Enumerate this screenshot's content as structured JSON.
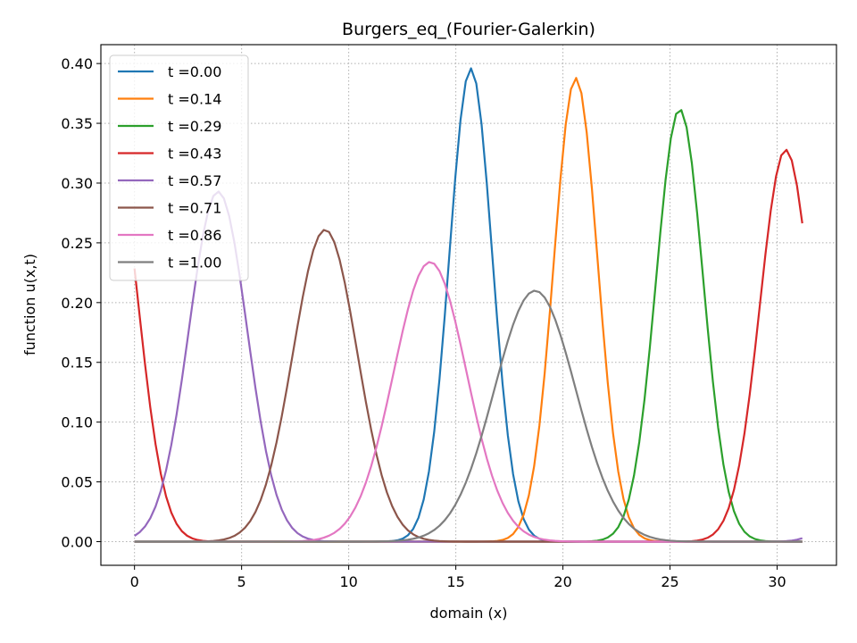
{
  "chart_data": {
    "type": "line",
    "title": "Burgers_eq_(Fourier-Galerkin)",
    "xlabel": "domain (x)",
    "ylabel": "function u(x,t)",
    "xlim": [
      -1.57,
      32.77
    ],
    "ylim": [
      -0.0198,
      0.4158
    ],
    "xticks": [
      0,
      5,
      10,
      15,
      20,
      25,
      30
    ],
    "yticks": [
      0.0,
      0.05,
      0.1,
      0.15,
      0.2,
      0.25,
      0.3,
      0.35,
      0.4
    ],
    "xtick_labels": [
      "0",
      "5",
      "10",
      "15",
      "20",
      "25",
      "30"
    ],
    "ytick_labels": [
      "0.00",
      "0.05",
      "0.10",
      "0.15",
      "0.20",
      "0.25",
      "0.30",
      "0.35",
      "0.40"
    ],
    "grid": true,
    "legend_position": "top-left",
    "domain_length": 31.42,
    "n_points": 128,
    "series": [
      {
        "name": "t =0.00",
        "color": "#1f77b4",
        "peak_x": 15.7,
        "peak_y": 0.396,
        "width": 1.0
      },
      {
        "name": "t =0.14",
        "color": "#ff7f0e",
        "peak_x": 20.6,
        "peak_y": 0.388,
        "width": 1.02
      },
      {
        "name": "t =0.29",
        "color": "#2ca02c",
        "peak_x": 25.45,
        "peak_y": 0.362,
        "width": 1.1
      },
      {
        "name": "t =0.43",
        "color": "#d62728",
        "peak_x": 30.4,
        "peak_y": 0.328,
        "width": 1.2
      },
      {
        "name": "t =0.57",
        "color": "#9467bd",
        "peak_x": 3.9,
        "peak_y": 0.293,
        "width": 1.36
      },
      {
        "name": "t =0.71",
        "color": "#8c564b",
        "peak_x": 8.9,
        "peak_y": 0.261,
        "width": 1.5
      },
      {
        "name": "t =0.86",
        "color": "#e377c2",
        "peak_x": 13.8,
        "peak_y": 0.234,
        "width": 1.7
      },
      {
        "name": "t =1.00",
        "color": "#7f7f7f",
        "peak_x": 18.7,
        "peak_y": 0.21,
        "width": 1.9
      }
    ]
  }
}
